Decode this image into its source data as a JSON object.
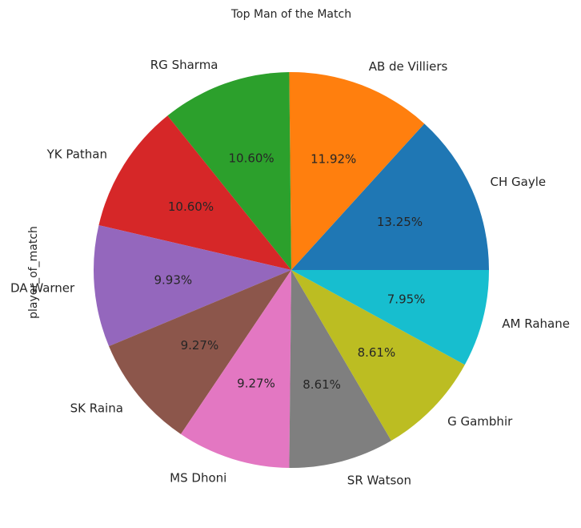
{
  "chart_data": {
    "type": "pie",
    "title": "Top Man of the Match",
    "ylabel": "player_of_match",
    "start_angle_deg": 0,
    "direction": "counterclockwise",
    "slices": [
      {
        "label": "CH Gayle",
        "value": 13.25,
        "pct_label": "13.25%",
        "color": "#1f77b4"
      },
      {
        "label": "AB de Villiers",
        "value": 11.92,
        "pct_label": "11.92%",
        "color": "#ff7f0e"
      },
      {
        "label": "RG Sharma",
        "value": 10.6,
        "pct_label": "10.60%",
        "color": "#2ca02c"
      },
      {
        "label": "YK Pathan",
        "value": 10.6,
        "pct_label": "10.60%",
        "color": "#d62728"
      },
      {
        "label": "DA Warner",
        "value": 9.93,
        "pct_label": "9.93%",
        "color": "#9467bd"
      },
      {
        "label": "SK Raina",
        "value": 9.27,
        "pct_label": "9.27%",
        "color": "#8c564b"
      },
      {
        "label": "MS Dhoni",
        "value": 9.27,
        "pct_label": "9.27%",
        "color": "#e377c2"
      },
      {
        "label": "SR Watson",
        "value": 8.61,
        "pct_label": "8.61%",
        "color": "#7f7f7f"
      },
      {
        "label": "G Gambhir",
        "value": 8.61,
        "pct_label": "8.61%",
        "color": "#bcbd22"
      },
      {
        "label": "AM Rahane",
        "value": 7.95,
        "pct_label": "7.95%",
        "color": "#17becf"
      }
    ]
  }
}
